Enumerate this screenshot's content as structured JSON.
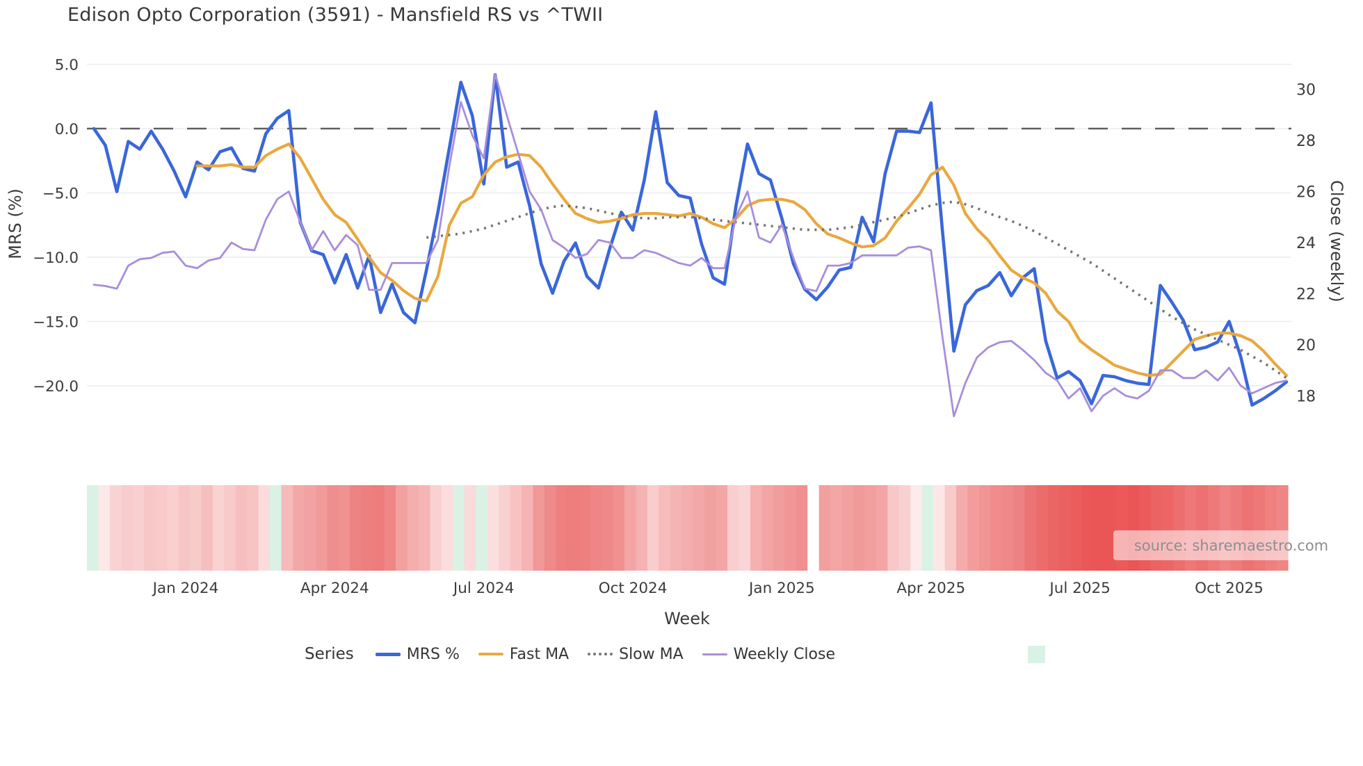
{
  "title": "Edison Opto Corporation (3591) - Mansfield RS vs ^TWII",
  "source": {
    "text": "source: sharemaestro.com"
  },
  "axes": {
    "left": {
      "title": "MRS (%)",
      "tick_labels": [
        "5.0",
        "0.0",
        "−5.0",
        "−10.0",
        "−15.0",
        "−20.0"
      ],
      "tick_values": [
        5,
        0,
        -5,
        -10,
        -15,
        -20
      ]
    },
    "right": {
      "title": "Close (weekly)",
      "tick_labels": [
        "30",
        "28",
        "26",
        "24",
        "22",
        "20",
        "18"
      ],
      "tick_values": [
        30,
        28,
        26,
        24,
        22,
        20,
        18
      ]
    },
    "x": {
      "title": "Week",
      "tick_labels": [
        "Jan 2024",
        "Apr 2024",
        "Jul 2024",
        "Oct 2024",
        "Jan 2025",
        "Apr 2025",
        "Jul 2025",
        "Oct 2025"
      ],
      "tick_week_indices": [
        8,
        21,
        34,
        47,
        60,
        73,
        86,
        99
      ]
    }
  },
  "legend": {
    "label": "Series",
    "items": [
      {
        "label": "MRS %",
        "type": "line",
        "color": "#3a67d9"
      },
      {
        "label": "Fast MA",
        "type": "line",
        "color": "#e9a83e"
      },
      {
        "label": "Slow MA",
        "type": "dotted",
        "color": "#757575"
      },
      {
        "label": "Weekly Close",
        "type": "line",
        "color": "#a98ddb"
      },
      {
        "label": "",
        "type": "square",
        "color": "#d9f2e5"
      }
    ]
  },
  "chart_data": {
    "type": "line",
    "x_unit": "week_index",
    "n_weeks": 105,
    "grid": true,
    "legend_position": "bottom",
    "left_axis_range": [
      -23.5,
      6.0
    ],
    "right_axis_range": [
      16.6,
      31.5
    ],
    "zero_line": {
      "axis": "left",
      "value": 0,
      "style": "dashed",
      "color": "#5f5f5f"
    },
    "series": [
      {
        "name": "MRS %",
        "axis": "left",
        "color": "#3a67d9",
        "width": 4.6,
        "style": "solid",
        "values": [
          0.0,
          -1.3,
          -4.9,
          -1.0,
          -1.6,
          -0.2,
          -1.6,
          -3.3,
          -5.3,
          -2.6,
          -3.2,
          -1.8,
          -1.5,
          -3.1,
          -3.3,
          -0.4,
          0.8,
          1.4,
          -7.3,
          -9.5,
          -9.8,
          -12.0,
          -9.8,
          -12.4,
          -9.9,
          -14.3,
          -12.1,
          -14.3,
          -15.1,
          -11.0,
          -6.5,
          -1.5,
          3.6,
          1.0,
          -4.3,
          4.2,
          -3.0,
          -2.6,
          -6.0,
          -10.5,
          -12.8,
          -10.3,
          -8.9,
          -11.5,
          -12.4,
          -9.3,
          -6.5,
          -7.9,
          -4.0,
          1.3,
          -4.2,
          -5.2,
          -5.4,
          -9.0,
          -11.6,
          -12.1,
          -6.0,
          -1.2,
          -3.5,
          -4.0,
          -7.0,
          -10.5,
          -12.5,
          -13.3,
          -12.3,
          -11.0,
          -10.8,
          -6.9,
          -8.8,
          -3.5,
          -0.2,
          -0.2,
          -0.3,
          2.0,
          -8.0,
          -17.3,
          -13.7,
          -12.6,
          -12.2,
          -11.2,
          -13.0,
          -11.6,
          -10.9,
          -16.5,
          -19.4,
          -18.9,
          -19.6,
          -21.4,
          -19.2,
          -19.3,
          -19.6,
          -19.8,
          -19.9,
          -12.2,
          -13.5,
          -14.9,
          -17.2,
          -17.0,
          -16.6,
          -15.0,
          -17.7,
          -21.5,
          -21.0,
          -20.4,
          -19.7
        ]
      },
      {
        "name": "Fast MA",
        "axis": "left",
        "color": "#e9a83e",
        "width": 4.2,
        "style": "solid",
        "values": [
          null,
          null,
          null,
          null,
          null,
          null,
          null,
          null,
          null,
          -2.9,
          -2.9,
          -2.9,
          -2.8,
          -3.0,
          -3.0,
          -2.1,
          -1.6,
          -1.2,
          -2.3,
          -3.9,
          -5.5,
          -6.7,
          -7.3,
          -8.6,
          -10.0,
          -11.2,
          -11.8,
          -12.6,
          -13.2,
          -13.4,
          -11.5,
          -7.5,
          -5.8,
          -5.3,
          -3.6,
          -2.6,
          -2.2,
          -2.0,
          -2.1,
          -3.0,
          -4.3,
          -5.5,
          -6.6,
          -7.0,
          -7.3,
          -7.2,
          -7.0,
          -6.7,
          -6.6,
          -6.6,
          -6.7,
          -6.8,
          -6.6,
          -6.9,
          -7.4,
          -7.7,
          -7.0,
          -6.0,
          -5.6,
          -5.5,
          -5.5,
          -5.7,
          -6.3,
          -7.4,
          -8.2,
          -8.5,
          -8.9,
          -9.2,
          -9.1,
          -8.5,
          -7.2,
          -6.2,
          -5.1,
          -3.6,
          -3.0,
          -4.4,
          -6.6,
          -7.8,
          -8.7,
          -9.9,
          -11.0,
          -11.6,
          -12.0,
          -12.8,
          -14.2,
          -15.0,
          -16.5,
          -17.2,
          -17.8,
          -18.4,
          -18.7,
          -19.0,
          -19.2,
          -19.1,
          -18.2,
          -17.3,
          -16.4,
          -16.1,
          -15.9,
          -15.9,
          -16.1,
          -16.5,
          -17.3,
          -18.3,
          -19.2
        ]
      },
      {
        "name": "Slow MA",
        "axis": "right",
        "color": "#737373",
        "width": 3.6,
        "style": "dotted",
        "values": [
          null,
          null,
          null,
          null,
          null,
          null,
          null,
          null,
          null,
          null,
          null,
          null,
          null,
          null,
          null,
          null,
          null,
          null,
          null,
          null,
          null,
          null,
          null,
          null,
          null,
          null,
          null,
          null,
          null,
          24.2,
          24.25,
          24.3,
          24.35,
          24.45,
          24.55,
          24.7,
          24.85,
          25.0,
          25.15,
          25.3,
          25.4,
          25.45,
          25.4,
          25.35,
          25.25,
          25.15,
          25.05,
          25.0,
          24.95,
          24.95,
          25.0,
          25.0,
          25.0,
          24.95,
          24.9,
          24.85,
          24.8,
          24.75,
          24.7,
          24.65,
          24.6,
          24.55,
          24.5,
          24.5,
          24.5,
          24.55,
          24.6,
          24.7,
          24.8,
          24.9,
          25.0,
          25.15,
          25.3,
          25.45,
          25.55,
          25.6,
          25.5,
          25.35,
          25.15,
          25.0,
          24.85,
          24.65,
          24.45,
          24.2,
          23.95,
          23.7,
          23.45,
          23.2,
          22.9,
          22.6,
          22.3,
          22.0,
          21.7,
          21.4,
          21.1,
          20.85,
          20.6,
          20.4,
          20.2,
          20.0,
          19.8,
          19.55,
          19.3,
          19.0,
          18.7
        ]
      },
      {
        "name": "Weekly Close",
        "axis": "right",
        "color": "#a98ddb",
        "width": 2.8,
        "style": "solid",
        "values": [
          22.35,
          22.3,
          22.2,
          23.1,
          23.35,
          23.4,
          23.6,
          23.65,
          23.1,
          23.0,
          23.3,
          23.4,
          24.0,
          23.75,
          23.7,
          24.9,
          25.7,
          26.0,
          24.8,
          23.7,
          24.45,
          23.7,
          24.3,
          23.9,
          22.15,
          22.15,
          23.2,
          23.2,
          23.2,
          23.2,
          24.1,
          27.0,
          29.5,
          28.2,
          27.3,
          30.6,
          29.0,
          27.5,
          26.0,
          25.3,
          24.1,
          23.8,
          23.4,
          23.55,
          24.1,
          24.0,
          23.4,
          23.4,
          23.7,
          23.6,
          23.4,
          23.2,
          23.1,
          23.4,
          23.0,
          23.0,
          25.0,
          26.0,
          24.2,
          24.0,
          24.7,
          23.4,
          22.2,
          22.1,
          23.1,
          23.1,
          23.2,
          23.5,
          23.5,
          23.5,
          23.5,
          23.8,
          23.85,
          23.7,
          20.3,
          17.2,
          18.5,
          19.5,
          19.9,
          20.1,
          20.15,
          19.8,
          19.4,
          18.9,
          18.6,
          17.9,
          18.3,
          17.4,
          18.0,
          18.3,
          18.0,
          17.9,
          18.2,
          19.0,
          19.0,
          18.7,
          18.7,
          19.0,
          18.6,
          19.1,
          18.4,
          18.1,
          18.3,
          18.5,
          18.6
        ]
      }
    ],
    "heatmap": {
      "description": "weekly strip below plot",
      "colors": [
        "#d9f2e5",
        "#fce8e8",
        "#f9d3d3",
        "#f8cccc",
        "#f9d0d0",
        "#f7c6c6",
        "#f8caca",
        "#f9cfcf",
        "#f7c5c5",
        "#f8cbcb",
        "#f6bfbf",
        "#f9d2d2",
        "#f8caca",
        "#f6bebe",
        "#f7c3c3",
        "#fadcdc",
        "#d9f2e5",
        "#f6baba",
        "#f3a8a8",
        "#f2a2a2",
        "#f19b9b",
        "#ef8e8e",
        "#f09292",
        "#ee8383",
        "#ee7f7f",
        "#ee7c7c",
        "#ef8787",
        "#f2a0a0",
        "#f4aeae",
        "#f5b5b5",
        "#f9d1d1",
        "#fbdddd",
        "#d9f2e5",
        "#fadada",
        "#d9f2e5",
        "#fbdfdf",
        "#f9d0d0",
        "#f7c2c2",
        "#f5b3b3",
        "#f19898",
        "#ef8a8a",
        "#ee8080",
        "#ee7d7d",
        "#ee7f7f",
        "#ef8585",
        "#ef8989",
        "#f09090",
        "#f3a5a5",
        "#f5b2b2",
        "#f9cdcd",
        "#f6bcbc",
        "#f5b4b4",
        "#f4adad",
        "#f3a7a7",
        "#f2a1a1",
        "#f3a6a6",
        "#f9cece",
        "#fad5d5",
        "#f5b0b0",
        "#f3a4a4",
        "#f29d9d",
        "#f19797",
        "#f09090",
        "#ffffff",
        "#f29f9f",
        "#f3a6a6",
        "#f2a0a0",
        "#f19a9a",
        "#f29e9e",
        "#f3a4a4",
        "#f8c8c8",
        "#f9d0d0",
        "#fdeaea",
        "#d9f2e5",
        "#fce6e6",
        "#f8caca",
        "#f4abab",
        "#f29c9c",
        "#f19494",
        "#f08c8c",
        "#ef8888",
        "#ee8181",
        "#ed7474",
        "#ec6c6c",
        "#ec6565",
        "#eb6060",
        "#eb5c5c",
        "#ea5757",
        "#ea5555",
        "#ea5656",
        "#eb5959",
        "#ea5555",
        "#eb5b5b",
        "#ec6363",
        "#ec6666",
        "#ed6e6e",
        "#ee7777",
        "#ed7171",
        "#ee7979",
        "#ef8282",
        "#ee7b7b",
        "#ed7272",
        "#ee7878",
        "#ef8080",
        "#ef8585"
      ]
    }
  }
}
